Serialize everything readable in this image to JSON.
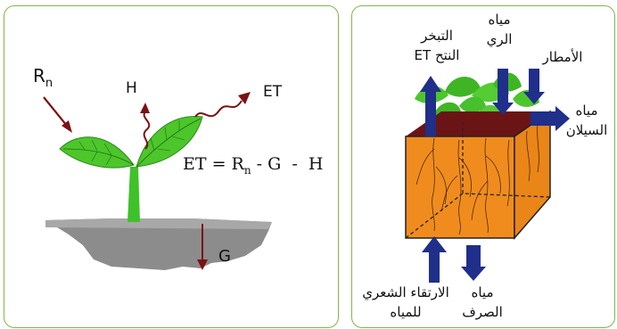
{
  "left": {
    "rn_main": "R",
    "rn_sub": "n",
    "h": "H",
    "et": "ET",
    "g": "G",
    "eq_start": "ET = R",
    "eq_sub": "n",
    "eq_end": " - G  -  H"
  },
  "right": {
    "evap_line1": "التبخر",
    "evap_line2": "النتح ET",
    "irr_line1": "مياه",
    "irr_line2": "الري",
    "rain": "الأمطار",
    "runoff_line1": "مياه",
    "runoff_line2": "السيلان",
    "capillary_line1": "الارتقاء الشعري",
    "capillary_line2": "للمياه",
    "drainage_line1": "مياه",
    "drainage_line2": "الصرف"
  },
  "colors": {
    "border": "#7fb74a",
    "leaf": "#4cc62b",
    "stem": "#3fc12a",
    "soil_block": "#f08c1e",
    "soil_gray": "#8c8c8c",
    "flux_arrow": "#7a1214",
    "blue_arrow": "#1f2f8a"
  }
}
